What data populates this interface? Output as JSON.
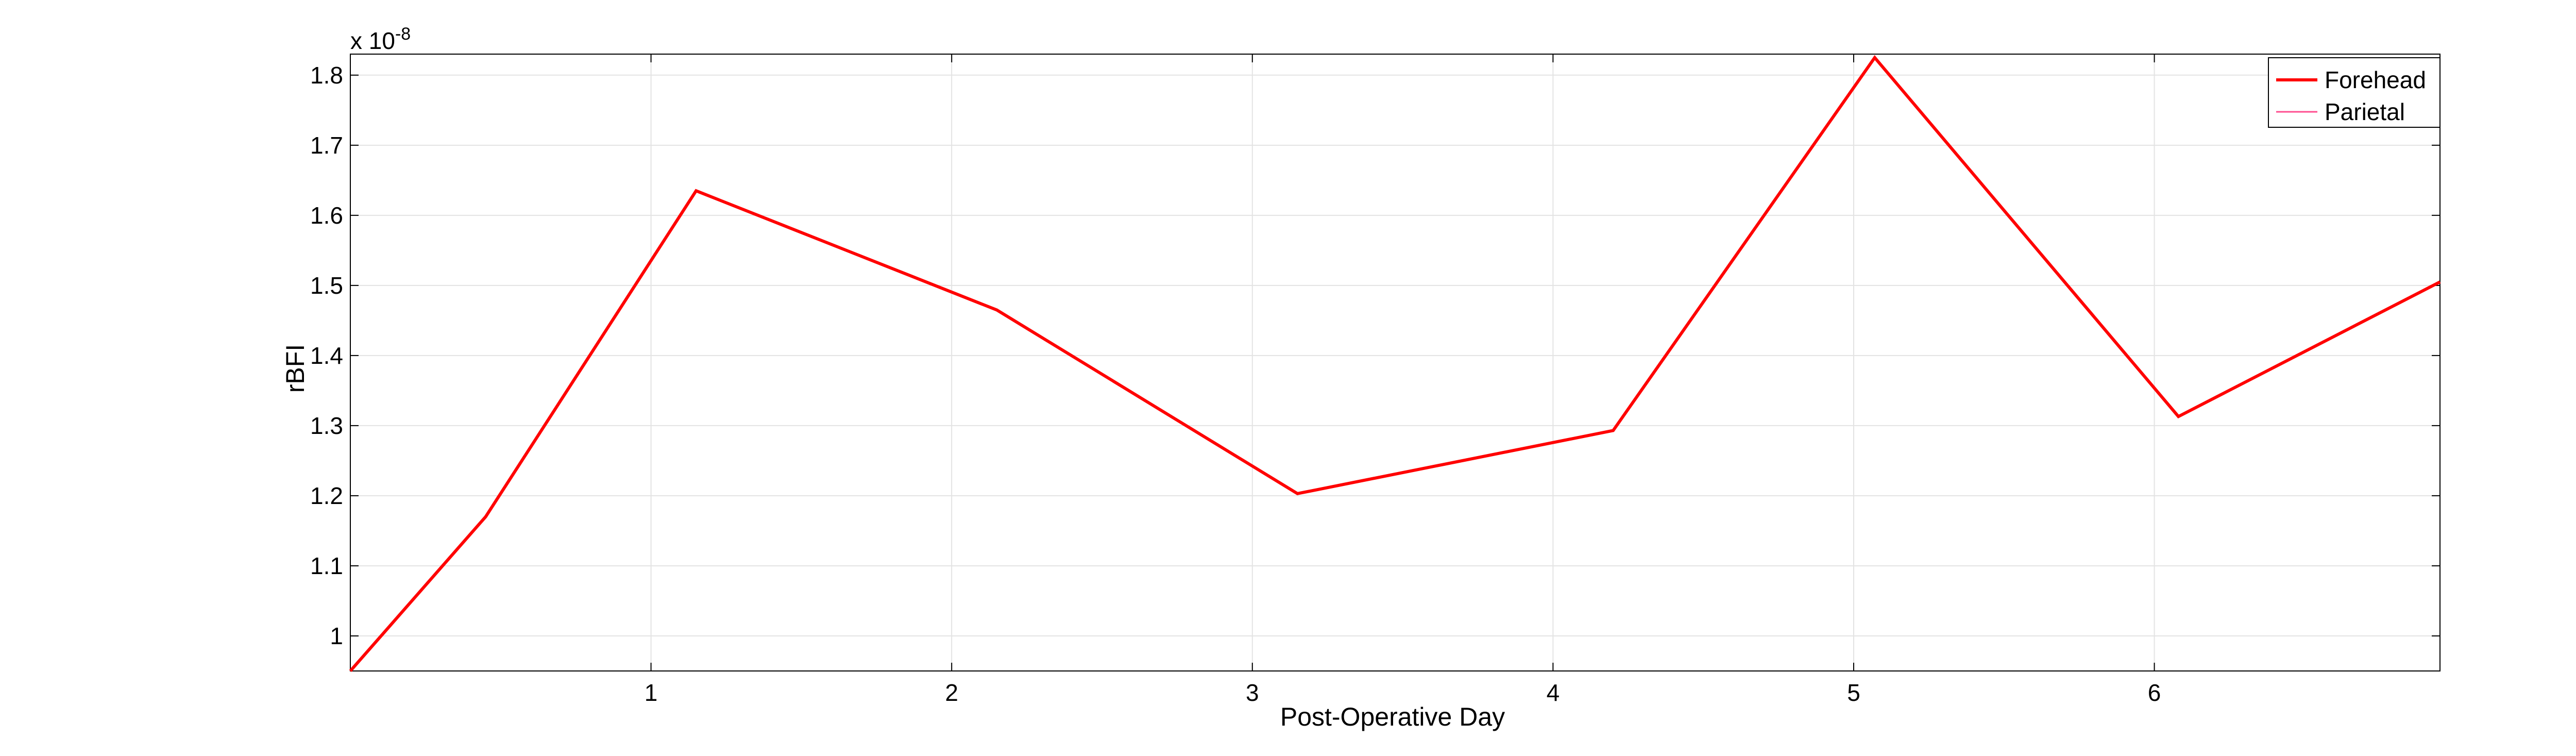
{
  "chart_data": {
    "type": "line",
    "title": "",
    "xlabel": "Post-Operative Day",
    "ylabel": "rBFI",
    "y_exponent_label": "x 10",
    "y_exponent_power": "-8",
    "xlim": [
      0,
      6.95
    ],
    "ylim": [
      0.95,
      1.83
    ],
    "x_ticks": [
      1,
      2,
      3,
      4,
      5,
      6
    ],
    "x_tick_labels": [
      "1",
      "2",
      "3",
      "4",
      "5",
      "6"
    ],
    "y_ticks": [
      1.0,
      1.1,
      1.2,
      1.3,
      1.4,
      1.5,
      1.6,
      1.7,
      1.8
    ],
    "y_tick_labels": [
      "1",
      "1.1",
      "1.2",
      "1.3",
      "1.4",
      "1.5",
      "1.6",
      "1.7",
      "1.8"
    ],
    "grid": true,
    "legend_position": "top-right",
    "series": [
      {
        "name": "Forehead",
        "color": "#ff0000",
        "x": [
          0.0,
          0.45,
          1.15,
          2.15,
          3.15,
          4.2,
          5.07,
          6.08,
          6.95
        ],
        "y": [
          0.95,
          1.17,
          1.635,
          1.465,
          1.203,
          1.293,
          1.825,
          1.313,
          1.505
        ]
      },
      {
        "name": "Parietal",
        "color": "#ff4d8f",
        "x": [],
        "y": []
      }
    ]
  }
}
